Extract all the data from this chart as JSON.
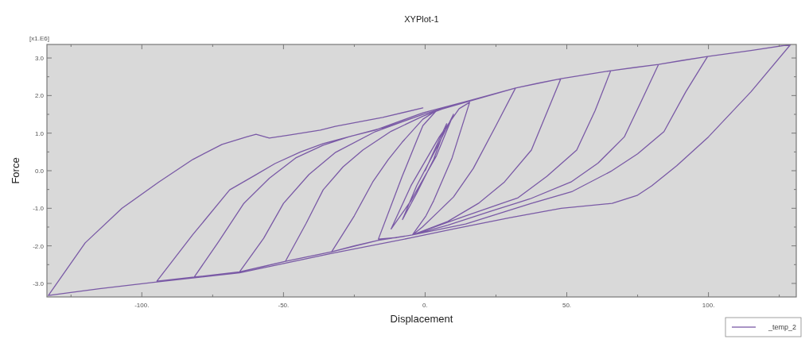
{
  "chart_data": {
    "type": "line",
    "title": "XYPlot-1",
    "xlabel": "Displacement",
    "ylabel": "Force",
    "annotations": [
      "[x1.E6]"
    ],
    "xlim": [
      -133.5,
      131
    ],
    "ylim": [
      -3.36,
      3.36
    ],
    "xticks": [
      {
        "value": -125,
        "label": null
      },
      {
        "value": -100,
        "label": "-100."
      },
      {
        "value": -75,
        "label": null
      },
      {
        "value": -50,
        "label": "-50."
      },
      {
        "value": -25,
        "label": null
      },
      {
        "value": 0,
        "label": "0."
      },
      {
        "value": 25,
        "label": null
      },
      {
        "value": 50,
        "label": "50."
      },
      {
        "value": 75,
        "label": null
      },
      {
        "value": 100,
        "label": "100."
      },
      {
        "value": 125,
        "label": null
      }
    ],
    "yticks": [
      {
        "value": -3,
        "label": "-3.0"
      },
      {
        "value": -2.5,
        "label": null
      },
      {
        "value": -2,
        "label": "-2.0"
      },
      {
        "value": -1.5,
        "label": null
      },
      {
        "value": -1,
        "label": "-1.0"
      },
      {
        "value": -0.5,
        "label": null
      },
      {
        "value": 0,
        "label": "0.0"
      },
      {
        "value": 0.5,
        "label": null
      },
      {
        "value": 1,
        "label": "1.0"
      },
      {
        "value": 1.5,
        "label": null
      },
      {
        "value": 2,
        "label": "2.0"
      },
      {
        "value": 2.5,
        "label": null
      },
      {
        "value": 3,
        "label": "3.0"
      }
    ],
    "grid": false,
    "legend": "bottom right",
    "marker": "none",
    "line_style": "solid",
    "series": [
      {
        "name": "_temp_2",
        "color": "#7a5aa6",
        "x": [
          0,
          3,
          7.6,
          3,
          -3,
          -8,
          -3,
          4,
          10,
          4,
          -5,
          -12,
          -5,
          5,
          12,
          15.7,
          9.5,
          3,
          0.3,
          -4.5,
          -10,
          -16.5,
          -8.1,
          -3,
          -0.8,
          4,
          8,
          15.7,
          24,
          31.9,
          25,
          17,
          10,
          4.8,
          -1,
          -4.5,
          -16.5,
          -25,
          -33,
          -25,
          -18.5,
          -13,
          -8.1,
          -0.8,
          4,
          15.7,
          31.9,
          40,
          47.9,
          37.5,
          28,
          18.8,
          8,
          -4.5,
          -16.5,
          -33,
          -49.3,
          -42,
          -36,
          -29,
          -22,
          -12,
          -0.8,
          8,
          15.7,
          31.9,
          47.9,
          57,
          65.5,
          60,
          53.5,
          43,
          32.8,
          14.3,
          -4.5,
          -16.5,
          -33,
          -49.3,
          -57,
          -65.5,
          -57,
          -50,
          -41,
          -31.6,
          -17.6,
          -0.8,
          15.7,
          31.9,
          47.9,
          65.5,
          74,
          82.4,
          76,
          70.3,
          61,
          51.5,
          37,
          23.5,
          8,
          -4.5,
          -16.5,
          -33,
          -49.3,
          -65.5,
          -81.5,
          -73,
          -64,
          -55,
          -45.7,
          -36,
          -27,
          -12,
          -0.8,
          15.7,
          31.9,
          47.9,
          65.5,
          82.4,
          91,
          99.7,
          92,
          84.3,
          75,
          65.5,
          52,
          37.5,
          14.3,
          -4.5,
          -16.5,
          -33,
          -49.3,
          -65.5,
          -81.5,
          -94.7,
          -82,
          -69,
          -60,
          -53,
          -44,
          -36,
          -26,
          -17.6,
          -0.8,
          15.7,
          31.9,
          47.9,
          65.5,
          82.4,
          99.7,
          115,
          129,
          115,
          100,
          88.8,
          80,
          74.8,
          66,
          48,
          30,
          10,
          -4.5,
          -33,
          -65.5,
          -94.7,
          -115,
          -133,
          -120,
          -107,
          -94,
          -82,
          -71.7,
          -63,
          -59.7,
          -55,
          -48,
          -37,
          -31.7,
          -15,
          -0.8
        ],
        "values": [
          0,
          0.5,
          1.25,
          0.3,
          -0.6,
          -1.3,
          -0.4,
          0.6,
          1.5,
          0.4,
          -0.8,
          -1.55,
          -0.4,
          0.9,
          1.65,
          1.82,
          0.34,
          -0.8,
          -1.2,
          -1.71,
          -1.78,
          -1.82,
          -0.15,
          0.8,
          1.2,
          1.6,
          1.7,
          1.85,
          2.03,
          2.2,
          1.2,
          0.06,
          -0.7,
          -1.08,
          -1.5,
          -1.71,
          -1.85,
          -2.0,
          -2.16,
          -1.2,
          -0.3,
          0.3,
          0.76,
          1.37,
          1.6,
          1.85,
          2.2,
          2.33,
          2.45,
          0.55,
          -0.3,
          -0.87,
          -1.35,
          -1.71,
          -1.85,
          -2.16,
          -2.41,
          -1.4,
          -0.51,
          0.1,
          0.55,
          1.05,
          1.45,
          1.7,
          1.85,
          2.2,
          2.45,
          2.56,
          2.66,
          1.6,
          0.55,
          -0.15,
          -0.72,
          -1.2,
          -1.71,
          -1.85,
          -2.16,
          -2.41,
          -2.55,
          -2.69,
          -1.8,
          -0.87,
          -0.1,
          0.49,
          1.04,
          1.5,
          1.87,
          2.2,
          2.45,
          2.66,
          2.75,
          2.83,
          1.8,
          0.9,
          0.2,
          -0.3,
          -0.75,
          -1.07,
          -1.45,
          -1.71,
          -1.85,
          -2.16,
          -2.41,
          -2.69,
          -2.83,
          -1.9,
          -0.87,
          -0.2,
          0.34,
          0.68,
          0.9,
          1.2,
          1.5,
          1.87,
          2.2,
          2.45,
          2.66,
          2.83,
          2.94,
          3.04,
          2.1,
          1.04,
          0.45,
          -0.02,
          -0.55,
          -0.87,
          -1.42,
          -1.71,
          -1.85,
          -2.16,
          -2.41,
          -2.69,
          -2.83,
          -2.94,
          -1.7,
          -0.51,
          -0.12,
          0.19,
          0.5,
          0.72,
          0.92,
          1.08,
          1.54,
          1.87,
          2.2,
          2.45,
          2.66,
          2.83,
          3.04,
          3.2,
          3.36,
          2.1,
          0.9,
          0.13,
          -0.4,
          -0.66,
          -0.87,
          -1.0,
          -1.25,
          -1.55,
          -1.78,
          -2.2,
          -2.72,
          -2.96,
          -3.14,
          -3.32,
          -1.92,
          -1.0,
          -0.3,
          0.3,
          0.7,
          0.9,
          0.97,
          0.87,
          0.95,
          1.08,
          1.18,
          1.42,
          1.67
        ]
      }
    ]
  }
}
